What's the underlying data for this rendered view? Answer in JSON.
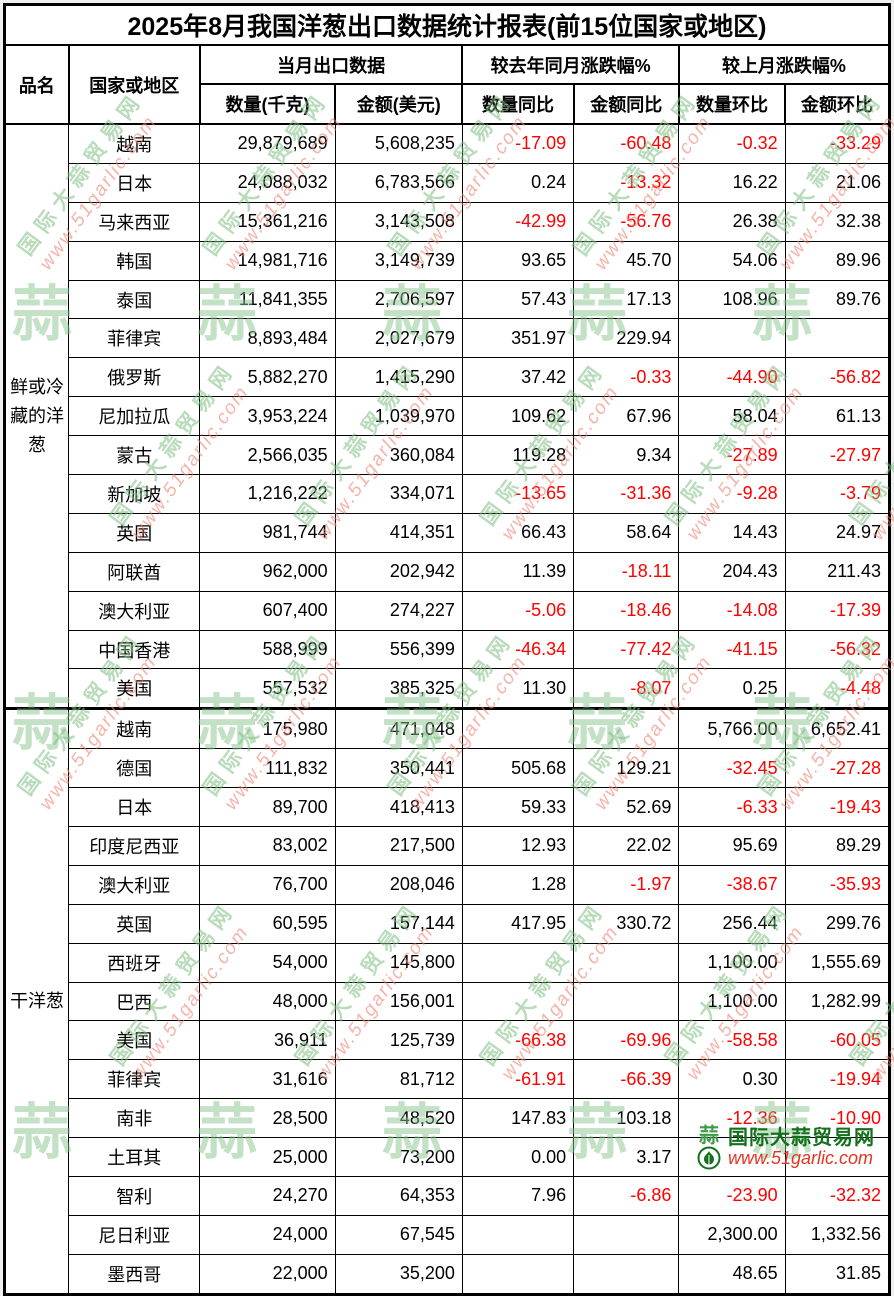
{
  "title": "2025年8月我国洋葱出口数据统计报表(前15位国家或地区)",
  "header": {
    "product": "品名",
    "country": "国家或地区",
    "group_current": "当月出口数据",
    "group_yoy": "较去年同月涨跌幅%",
    "group_mom": "较上月涨跌幅%",
    "sub": [
      "数量(千克)",
      "金额(美元)",
      "数量同比",
      "金额同比",
      "数量环比",
      "金额环比"
    ]
  },
  "colors": {
    "negative_value": "#ff0000",
    "text": "#000000",
    "logo_green": "#14701d",
    "logo_red": "#e23422",
    "watermark_green": "rgba(125,190,130,0.55)",
    "watermark_red": "rgba(238,128,112,0.60)"
  },
  "sections": [
    {
      "product": "鲜或冷藏的洋葱",
      "rows": [
        [
          "越南",
          "29,879,689",
          "5,608,235",
          "-17.09",
          "-60.48",
          "-0.32",
          "-33.29"
        ],
        [
          "日本",
          "24,088,032",
          "6,783,566",
          "0.24",
          "-13.32",
          "16.22",
          "21.06"
        ],
        [
          "马来西亚",
          "15,361,216",
          "3,143,508",
          "-42.99",
          "-56.76",
          "26.38",
          "32.38"
        ],
        [
          "韩国",
          "14,981,716",
          "3,149,739",
          "93.65",
          "45.70",
          "54.06",
          "89.96"
        ],
        [
          "泰国",
          "11,841,355",
          "2,706,597",
          "57.43",
          "17.13",
          "108.96",
          "89.76"
        ],
        [
          "菲律宾",
          "8,893,484",
          "2,027,679",
          "351.97",
          "229.94",
          "",
          ""
        ],
        [
          "俄罗斯",
          "5,882,270",
          "1,415,290",
          "37.42",
          "-0.33",
          "-44.90",
          "-56.82"
        ],
        [
          "尼加拉瓜",
          "3,953,224",
          "1,039,970",
          "109.62",
          "67.96",
          "58.04",
          "61.13"
        ],
        [
          "蒙古",
          "2,566,035",
          "360,084",
          "119.28",
          "9.34",
          "-27.89",
          "-27.97"
        ],
        [
          "新加坡",
          "1,216,222",
          "334,071",
          "-13.65",
          "-31.36",
          "-9.28",
          "-3.79"
        ],
        [
          "英国",
          "981,744",
          "414,351",
          "66.43",
          "58.64",
          "14.43",
          "24.97"
        ],
        [
          "阿联酋",
          "962,000",
          "202,942",
          "11.39",
          "-18.11",
          "204.43",
          "211.43"
        ],
        [
          "澳大利亚",
          "607,400",
          "274,227",
          "-5.06",
          "-18.46",
          "-14.08",
          "-17.39"
        ],
        [
          "中国香港",
          "588,999",
          "556,399",
          "-46.34",
          "-77.42",
          "-41.15",
          "-56.32"
        ],
        [
          "美国",
          "557,532",
          "385,325",
          "11.30",
          "-8.07",
          "0.25",
          "-4.48"
        ]
      ]
    },
    {
      "product": "干洋葱",
      "rows": [
        [
          "越南",
          "175,980",
          "471,048",
          "",
          "",
          "5,766.00",
          "6,652.41"
        ],
        [
          "德国",
          "111,832",
          "350,441",
          "505.68",
          "129.21",
          "-32.45",
          "-27.28"
        ],
        [
          "日本",
          "89,700",
          "418,413",
          "59.33",
          "52.69",
          "-6.33",
          "-19.43"
        ],
        [
          "印度尼西亚",
          "83,002",
          "217,500",
          "12.93",
          "22.02",
          "95.69",
          "89.29"
        ],
        [
          "澳大利亚",
          "76,700",
          "208,046",
          "1.28",
          "-1.97",
          "-38.67",
          "-35.93"
        ],
        [
          "英国",
          "60,595",
          "157,144",
          "417.95",
          "330.72",
          "256.44",
          "299.76"
        ],
        [
          "西班牙",
          "54,000",
          "145,800",
          "",
          "",
          "1,100.00",
          "1,555.69"
        ],
        [
          "巴西",
          "48,000",
          "156,001",
          "",
          "",
          "1,100.00",
          "1,282.99"
        ],
        [
          "美国",
          "36,911",
          "125,739",
          "-66.38",
          "-69.96",
          "-58.58",
          "-60.05"
        ],
        [
          "菲律宾",
          "31,616",
          "81,712",
          "-61.91",
          "-66.39",
          "0.30",
          "-19.94"
        ],
        [
          "南非",
          "28,500",
          "48,520",
          "147.83",
          "103.18",
          "-12.36",
          "-10.90"
        ],
        [
          "土耳其",
          "25,000",
          "73,200",
          "0.00",
          "3.17",
          "",
          ""
        ],
        [
          "智利",
          "24,270",
          "64,353",
          "7.96",
          "-6.86",
          "-23.90",
          "-32.32"
        ],
        [
          "尼日利亚",
          "24,000",
          "67,545",
          "",
          "",
          "2,300.00",
          "1,332.56"
        ],
        [
          "墨西哥",
          "22,000",
          "35,200",
          "",
          "",
          "48.65",
          "31.85"
        ]
      ]
    }
  ],
  "watermark": {
    "cn": "国际大蒜贸易网",
    "url": "www.51garlic.com",
    "glyph": "蒜"
  },
  "logo": {
    "cn": "国际大蒜贸易网",
    "url": "www.51garlic.com"
  }
}
